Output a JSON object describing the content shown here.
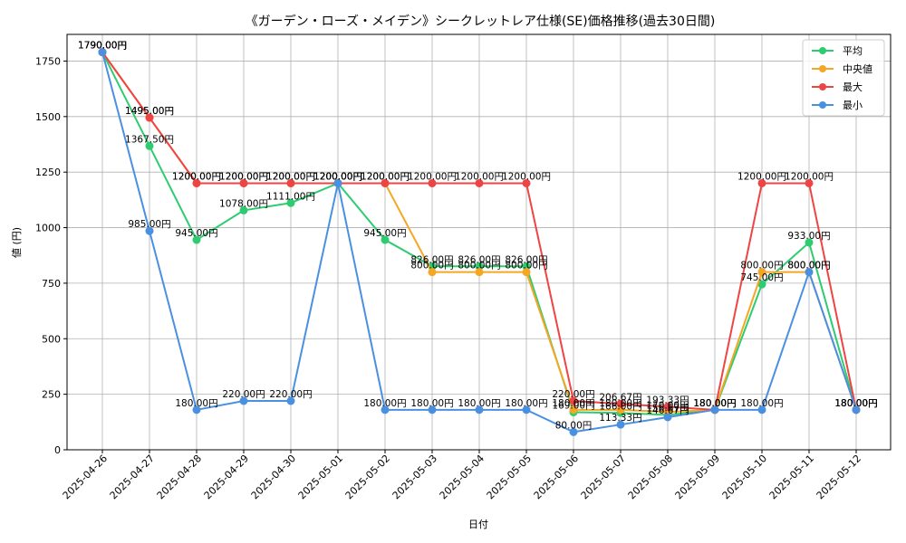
{
  "chart_data": {
    "type": "line",
    "title": "《ガーデン・ローズ・メイデン》シークレットレア仕様(SE)価格推移(過去30日間)",
    "xlabel": "日付",
    "ylabel": "値 (円)",
    "ylim": [
      0,
      1870
    ],
    "yticks": [
      0,
      250,
      500,
      750,
      1000,
      1250,
      1500,
      1750
    ],
    "grid": true,
    "legend_position": "top-right",
    "categories": [
      "2025-04-26",
      "2025-04-27",
      "2025-04-28",
      "2025-04-29",
      "2025-04-30",
      "2025-05-01",
      "2025-05-02",
      "2025-05-03",
      "2025-05-04",
      "2025-05-05",
      "2025-05-06",
      "2025-05-07",
      "2025-05-08",
      "2025-05-09",
      "2025-05-10",
      "2025-05-11",
      "2025-05-12"
    ],
    "series": [
      {
        "name": "平均",
        "color": "#2ecc71",
        "values": [
          1790,
          1367.5,
          945,
          1078,
          1111,
          1200,
          945,
          826,
          826,
          826,
          169,
          166,
          156.67,
          180,
          745,
          933,
          180
        ],
        "labels": [
          "1790.00円",
          "1367.50円",
          "945.00円",
          "1078.00円",
          "1111.00円",
          "1200.00円",
          "945.00円",
          "826.00円",
          "826.00円",
          "826.00円",
          "169.00円",
          "166.00円",
          "156.67円",
          "180.00円",
          "745.00円",
          "933.00円",
          "180.00円"
        ]
      },
      {
        "name": "中央値",
        "color": "#f5a623",
        "values": [
          1790,
          1495,
          1200,
          1200,
          1200,
          1200,
          1200,
          800,
          800,
          800,
          180,
          180,
          170,
          180,
          800,
          800,
          180
        ],
        "labels": [
          "1790.00円",
          "1495.00円",
          "1200.00円",
          "1200.00円",
          "1200.00円",
          "1200.00円",
          "1200.00円",
          "800.00円",
          "800.00円",
          "800.00円",
          "180.00円",
          "180.00円",
          "170.00円",
          "180.00円",
          "800.00円",
          "800.00円",
          "180.00円"
        ]
      },
      {
        "name": "最大",
        "color": "#ef4444",
        "values": [
          1790,
          1495,
          1200,
          1200,
          1200,
          1200,
          1200,
          1200,
          1200,
          1200,
          220,
          206.67,
          193.33,
          180,
          1200,
          1200,
          180
        ],
        "labels": [
          "1790.00円",
          "1495.00円",
          "1200.00円",
          "1200.00円",
          "1200.00円",
          "1200.00円",
          "1200.00円",
          "1200.00円",
          "1200.00円",
          "1200.00円",
          "220.00円",
          "206.67円",
          "193.33円",
          "180.00円",
          "1200.00円",
          "1200.00円",
          "180.00円"
        ]
      },
      {
        "name": "最小",
        "color": "#4a90e2",
        "values": [
          1790,
          985,
          180,
          220,
          220,
          1200,
          180,
          180,
          180,
          180,
          80,
          113.33,
          146.67,
          180,
          180,
          800,
          180
        ],
        "labels": [
          "1790.00円",
          "985.00円",
          "180.00円",
          "220.00円",
          "220.00円",
          "1200.00円",
          "180.00円",
          "180.00円",
          "180.00円",
          "180.00円",
          "80.00円",
          "113.33円",
          "146.67円",
          "180.00円",
          "180.00円",
          "800.00円",
          "180.00円"
        ]
      }
    ]
  }
}
